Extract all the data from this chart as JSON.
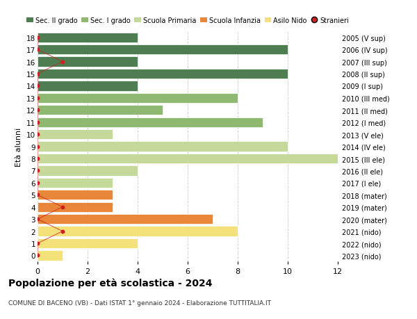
{
  "ages": [
    0,
    1,
    2,
    3,
    4,
    5,
    6,
    7,
    8,
    9,
    10,
    11,
    12,
    13,
    14,
    15,
    16,
    17,
    18
  ],
  "right_labels": [
    "2023 (nido)",
    "2022 (nido)",
    "2021 (nido)",
    "2020 (mater)",
    "2019 (mater)",
    "2018 (mater)",
    "2017 (I ele)",
    "2016 (II ele)",
    "2015 (III ele)",
    "2014 (IV ele)",
    "2013 (V ele)",
    "2012 (I med)",
    "2011 (II med)",
    "2010 (III med)",
    "2009 (I sup)",
    "2008 (II sup)",
    "2007 (III sup)",
    "2006 (IV sup)",
    "2005 (V sup)"
  ],
  "bar_values": [
    1,
    4,
    8,
    7,
    3,
    3,
    3,
    4,
    12,
    10,
    3,
    9,
    5,
    8,
    4,
    10,
    4,
    10,
    4
  ],
  "bar_colors": [
    "#f5e17a",
    "#f5e17a",
    "#f5e17a",
    "#e8863a",
    "#e8863a",
    "#e8863a",
    "#c5d99a",
    "#c5d99a",
    "#c5d99a",
    "#c5d99a",
    "#c5d99a",
    "#8fb870",
    "#8fb870",
    "#8fb870",
    "#4e7d52",
    "#4e7d52",
    "#4e7d52",
    "#4e7d52",
    "#4e7d52"
  ],
  "stranieri_dot_x": [
    0,
    0,
    1,
    0,
    1,
    0,
    0,
    0,
    0,
    0,
    0,
    0,
    0,
    0,
    0,
    0,
    1,
    0,
    0
  ],
  "legend_labels": [
    "Sec. II grado",
    "Sec. I grado",
    "Scuola Primaria",
    "Scuola Infanzia",
    "Asilo Nido",
    "Stranieri"
  ],
  "legend_colors": [
    "#4e7d52",
    "#8fb870",
    "#c5d99a",
    "#e8863a",
    "#f5e17a",
    "#cc2222"
  ],
  "title": "Popolazione per età scolastica - 2024",
  "subtitle": "COMUNE DI BACENO (VB) - Dati ISTAT 1° gennaio 2024 - Elaborazione TUTTITALIA.IT",
  "ylabel_left": "Età alunni",
  "xlim": [
    0,
    12
  ],
  "xticks": [
    0,
    2,
    4,
    6,
    8,
    10,
    12
  ],
  "background_color": "#ffffff",
  "grid_color": "#cccccc",
  "bar_height": 0.82
}
